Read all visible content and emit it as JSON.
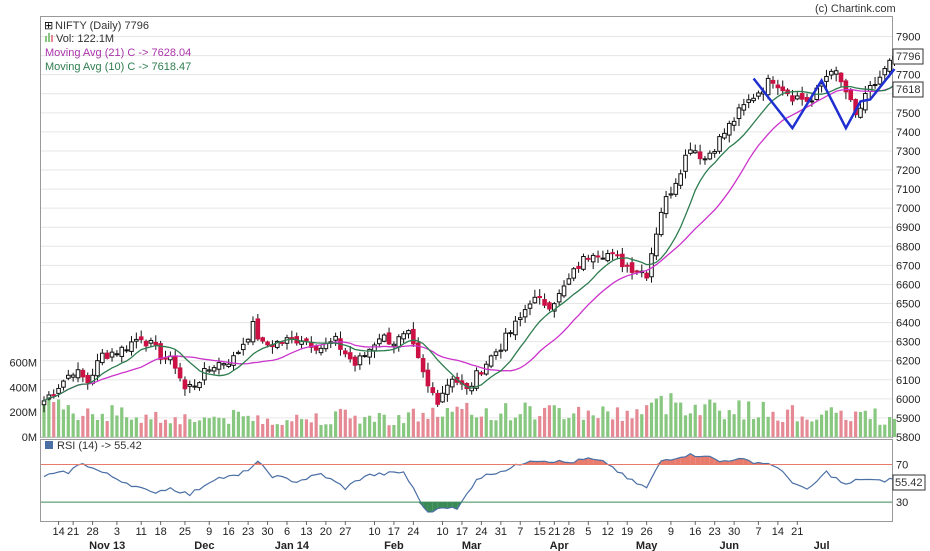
{
  "credit": "(c) Chartink.com",
  "legend": {
    "symbol": "NIFTY (Daily) 7796",
    "volume": "Vol: 122.1M",
    "ma21": "Moving Avg (21) C -> 7628.04",
    "ma10": "Moving Avg (10) C -> 7618.47",
    "rsi": "RSI (14) -> 55.42"
  },
  "colors": {
    "up_candle": "#ffffff",
    "down_candle": "#cc1144",
    "up_volume": "#88c77f",
    "down_volume": "#e58a95",
    "ma21": "#cc33cc",
    "ma10": "#2e7d4f",
    "rsi_line": "#4a6fa5",
    "rsi_overbought": "#e87b6b",
    "rsi_oversold": "#3a8a55",
    "pattern": "#1f2fd1",
    "grid": "#e6e6e6"
  },
  "chart_data": {
    "type": "candlestick",
    "price_axis": {
      "ticks": [
        "5800",
        "5900",
        "6000",
        "6100",
        "6200",
        "6300",
        "6400",
        "6500",
        "6600",
        "6700",
        "6800",
        "6900",
        "7000",
        "7100",
        "7200",
        "7300",
        "7400",
        "7500",
        "7600",
        "7700",
        "7800",
        "7900"
      ],
      "range": [
        5800,
        7950
      ]
    },
    "volume_axis": {
      "ticks": [
        "0M",
        "200M",
        "400M",
        "600M"
      ],
      "range": [
        0,
        700
      ]
    },
    "rsi_axis": {
      "ticks": [
        "30",
        "70"
      ],
      "range": [
        10,
        95
      ],
      "overbought": 70,
      "oversold": 30
    },
    "price_badges": [
      "7796",
      "7618"
    ],
    "rsi_badge": "55.42",
    "x_day_labels": [
      "14",
      "21",
      "28",
      "3",
      "11",
      "18",
      "25",
      "9",
      "16",
      "23",
      "30",
      "6",
      "13",
      "20",
      "27",
      "10",
      "17",
      "24",
      "10",
      "17",
      "24",
      "31",
      "7",
      "15",
      "21",
      "28",
      "5",
      "12",
      "19",
      "26",
      "9",
      "16",
      "23",
      "30",
      "7",
      "14",
      "21"
    ],
    "x_month_labels": [
      "Nov 13",
      "Dec",
      "Jan 14",
      "Feb",
      "Mar",
      "Apr",
      "May",
      "Jun",
      "Jul"
    ],
    "price_path": [
      [
        0,
        5990
      ],
      [
        6,
        6150
      ],
      [
        9,
        6090
      ],
      [
        12,
        6230
      ],
      [
        16,
        6260
      ],
      [
        20,
        6330
      ],
      [
        24,
        6230
      ],
      [
        27,
        6180
      ],
      [
        29,
        6050
      ],
      [
        31,
        6080
      ],
      [
        35,
        6180
      ],
      [
        39,
        6210
      ],
      [
        43,
        6380
      ],
      [
        45,
        6280
      ],
      [
        49,
        6300
      ],
      [
        53,
        6320
      ],
      [
        57,
        6270
      ],
      [
        60,
        6300
      ],
      [
        64,
        6180
      ],
      [
        66,
        6230
      ],
      [
        69,
        6330
      ],
      [
        72,
        6300
      ],
      [
        75,
        6330
      ],
      [
        79,
        6060
      ],
      [
        81,
        6000
      ],
      [
        84,
        6120
      ],
      [
        87,
        6040
      ],
      [
        90,
        6160
      ],
      [
        94,
        6280
      ],
      [
        98,
        6420
      ],
      [
        100,
        6520
      ],
      [
        104,
        6500
      ],
      [
        106,
        6540
      ],
      [
        110,
        6700
      ],
      [
        113,
        6780
      ],
      [
        116,
        6760
      ],
      [
        120,
        6700
      ],
      [
        124,
        6660
      ],
      [
        127,
        6990
      ],
      [
        130,
        7150
      ],
      [
        133,
        7330
      ],
      [
        136,
        7260
      ],
      [
        139,
        7360
      ],
      [
        143,
        7500
      ],
      [
        146,
        7590
      ],
      [
        150,
        7680
      ],
      [
        154,
        7590
      ],
      [
        158,
        7560
      ],
      [
        162,
        7740
      ],
      [
        165,
        7610
      ],
      [
        167,
        7480
      ],
      [
        170,
        7620
      ],
      [
        173,
        7720
      ],
      [
        175,
        7796
      ]
    ],
    "volume_path": [
      [
        0,
        240
      ],
      [
        10,
        210
      ],
      [
        20,
        170
      ],
      [
        30,
        150
      ],
      [
        40,
        160
      ],
      [
        50,
        140
      ],
      [
        60,
        170
      ],
      [
        70,
        150
      ],
      [
        80,
        190
      ],
      [
        90,
        200
      ],
      [
        100,
        210
      ],
      [
        110,
        200
      ],
      [
        120,
        190
      ],
      [
        130,
        290
      ],
      [
        140,
        230
      ],
      [
        150,
        200
      ],
      [
        160,
        170
      ],
      [
        170,
        180
      ],
      [
        175,
        122
      ]
    ],
    "rsi_path": [
      [
        0,
        58
      ],
      [
        5,
        62
      ],
      [
        8,
        72
      ],
      [
        10,
        66
      ],
      [
        15,
        55
      ],
      [
        22,
        40
      ],
      [
        26,
        45
      ],
      [
        30,
        38
      ],
      [
        35,
        55
      ],
      [
        40,
        58
      ],
      [
        44,
        72
      ],
      [
        47,
        58
      ],
      [
        52,
        52
      ],
      [
        57,
        60
      ],
      [
        62,
        45
      ],
      [
        66,
        58
      ],
      [
        70,
        60
      ],
      [
        74,
        62
      ],
      [
        77,
        35
      ],
      [
        79,
        18
      ],
      [
        82,
        26
      ],
      [
        85,
        22
      ],
      [
        89,
        55
      ],
      [
        93,
        62
      ],
      [
        96,
        66
      ],
      [
        100,
        75
      ],
      [
        104,
        74
      ],
      [
        108,
        72
      ],
      [
        112,
        76
      ],
      [
        116,
        71
      ],
      [
        120,
        55
      ],
      [
        124,
        45
      ],
      [
        127,
        74
      ],
      [
        132,
        80
      ],
      [
        136,
        80
      ],
      [
        139,
        73
      ],
      [
        142,
        76
      ],
      [
        146,
        73
      ],
      [
        150,
        70
      ],
      [
        154,
        52
      ],
      [
        157,
        42
      ],
      [
        161,
        62
      ],
      [
        165,
        48
      ],
      [
        168,
        55
      ],
      [
        172,
        52
      ],
      [
        175,
        55
      ]
    ],
    "pattern_points": [
      [
        146,
        7680
      ],
      [
        154,
        7420
      ],
      [
        160,
        7670
      ],
      [
        165,
        7420
      ],
      [
        168,
        7560
      ],
      [
        170,
        7570
      ],
      [
        175,
        7730
      ]
    ],
    "series": [
      {
        "name": "NIFTY (Daily) 7796"
      },
      {
        "name": "Moving Avg (21) C -> 7628.04"
      },
      {
        "name": "Moving Avg (10) C -> 7618.47"
      },
      {
        "name": "RSI (14) -> 55.42"
      }
    ]
  }
}
